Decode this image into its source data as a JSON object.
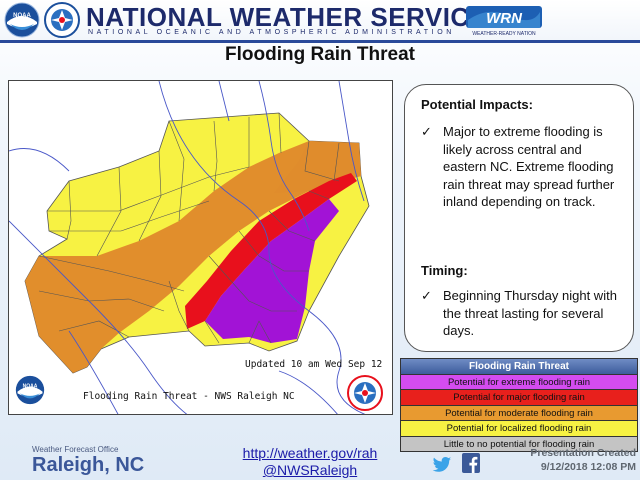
{
  "header": {
    "agency": "NATIONAL WEATHER SERVICE",
    "subtitle": "NATIONAL OCEANIC AND ATMOSPHERIC ADMINISTRATION",
    "wrn_logo_text": "WRN",
    "wrn_logo_sub": "WEATHER-READY NATION",
    "noaa_logo_text": "NOAA",
    "nws_logo_text": "NWS"
  },
  "title": "Flooding Rain Threat",
  "map": {
    "updated": "Updated  10 am Wed Sep 12",
    "caption": "Flooding Rain Threat - NWS Raleigh NC",
    "noaa_logo_text": "NOAA",
    "nws_logo_text": "NWS"
  },
  "impacts": {
    "heading": "Potential Impacts:",
    "text": "Major to extreme flooding is likely across central and eastern NC.  Extreme flooding rain threat may spread further inland depending on track.",
    "timing_heading": "Timing:",
    "timing_text": "Beginning Thursday night with the threat lasting for several days.",
    "check": "✓"
  },
  "legend": {
    "title": "Flooding Rain Threat",
    "rows": [
      {
        "label": "Potential for extreme flooding rain",
        "color": "#d44cf0"
      },
      {
        "label": "Potential for major flooding rain",
        "color": "#e8201c"
      },
      {
        "label": "Potential for moderate flooding rain",
        "color": "#e89a30"
      },
      {
        "label": "Potential for localized flooding rain",
        "color": "#f7f243"
      },
      {
        "label": "Little to no potential for flooding rain",
        "color": "#c4c4c4"
      }
    ]
  },
  "footer": {
    "wfo_label": "Weather Forecast Office",
    "wfo_name": "Raleigh, NC",
    "link": "http://weather.gov/rah",
    "handle": "@NWSRaleigh",
    "presentation_created": "Presentation Created",
    "presentation_date": "9/12/2018 12:08 PM"
  },
  "colors": {
    "extreme": "#a213d6",
    "major": "#e8101c",
    "moderate": "#e08c2c",
    "localized": "#f7f243",
    "accent": "#1d2a6b"
  }
}
